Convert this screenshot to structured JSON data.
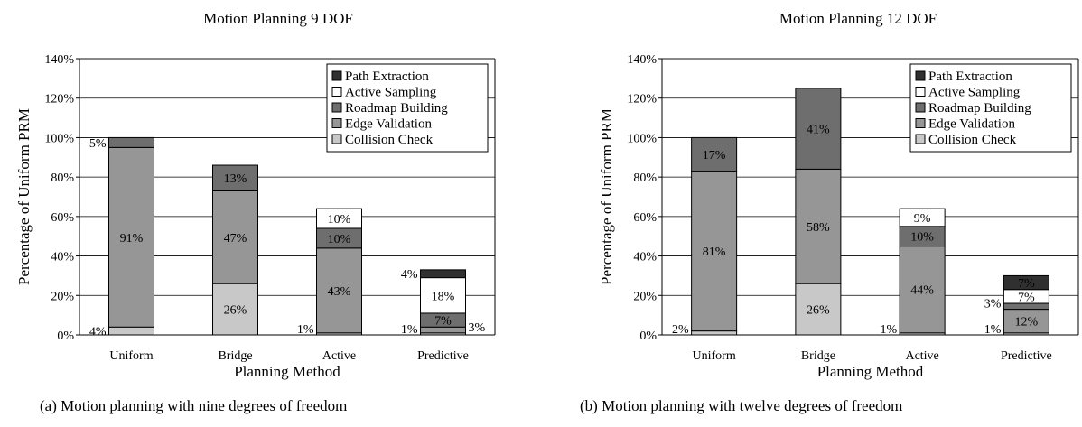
{
  "chart_data": [
    {
      "type": "stacked-bar",
      "title": "Motion Planning 9 DOF",
      "xlabel": "Planning Method",
      "ylabel": "Percentage of Uniform PRM",
      "ylim": [
        0,
        140
      ],
      "yticks": [
        "0%",
        "20%",
        "40%",
        "60%",
        "80%",
        "100%",
        "120%",
        "140%"
      ],
      "grid": true,
      "legend_position": "top-right",
      "colors": {
        "collision": "#c8c8c8",
        "edge": "#969696",
        "roadmap": "#6e6e6e",
        "active": "#ffffff",
        "path": "#303030"
      },
      "legend": [
        {
          "key": "path",
          "label": "Path Extraction"
        },
        {
          "key": "active",
          "label": "Active Sampling"
        },
        {
          "key": "roadmap",
          "label": "Roadmap Building"
        },
        {
          "key": "edge",
          "label": "Edge Validation"
        },
        {
          "key": "collision",
          "label": "Collision Check"
        }
      ],
      "categories": [
        "Uniform",
        "Bridge",
        "Active",
        "Predictive"
      ],
      "series": [
        {
          "name": "Collision Check",
          "key": "collision",
          "values": [
            4,
            26,
            1,
            1
          ]
        },
        {
          "name": "Edge Validation",
          "key": "edge",
          "values": [
            91,
            47,
            43,
            3
          ]
        },
        {
          "name": "Roadmap Building",
          "key": "roadmap",
          "values": [
            5,
            13,
            10,
            7
          ]
        },
        {
          "name": "Active Sampling",
          "key": "active",
          "values": [
            0,
            0,
            10,
            18
          ]
        },
        {
          "name": "Path Extraction",
          "key": "path",
          "values": [
            0,
            0,
            0,
            4
          ]
        }
      ],
      "data_labels": [
        {
          "category": 0,
          "series": "collision",
          "text": "4%",
          "pos": "left"
        },
        {
          "category": 0,
          "series": "edge",
          "text": "91%",
          "pos": "center"
        },
        {
          "category": 0,
          "series": "roadmap",
          "text": "5%",
          "pos": "left"
        },
        {
          "category": 1,
          "series": "collision",
          "text": "26%",
          "pos": "center"
        },
        {
          "category": 1,
          "series": "edge",
          "text": "47%",
          "pos": "center"
        },
        {
          "category": 1,
          "series": "roadmap",
          "text": "13%",
          "pos": "center"
        },
        {
          "category": 2,
          "series": "collision",
          "text": "1%",
          "pos": "left"
        },
        {
          "category": 2,
          "series": "edge",
          "text": "43%",
          "pos": "center"
        },
        {
          "category": 2,
          "series": "roadmap",
          "text": "10%",
          "pos": "center"
        },
        {
          "category": 2,
          "series": "active",
          "text": "10%",
          "pos": "center"
        },
        {
          "category": 3,
          "series": "collision",
          "text": "1%",
          "pos": "left"
        },
        {
          "category": 3,
          "series": "edge",
          "text": "3%",
          "pos": "right"
        },
        {
          "category": 3,
          "series": "roadmap",
          "text": "7%",
          "pos": "center"
        },
        {
          "category": 3,
          "series": "active",
          "text": "18%",
          "pos": "center"
        },
        {
          "category": 3,
          "series": "path",
          "text": "4%",
          "pos": "left"
        }
      ]
    },
    {
      "type": "stacked-bar",
      "title": "Motion Planning 12 DOF",
      "xlabel": "Planning Method",
      "ylabel": "Percentage of Uniform PRM",
      "ylim": [
        0,
        140
      ],
      "yticks": [
        "0%",
        "20%",
        "40%",
        "60%",
        "80%",
        "100%",
        "120%",
        "140%"
      ],
      "grid": true,
      "legend_position": "top-right",
      "colors": {
        "collision": "#c8c8c8",
        "edge": "#969696",
        "roadmap": "#6e6e6e",
        "active": "#ffffff",
        "path": "#303030"
      },
      "legend": [
        {
          "key": "path",
          "label": "Path Extraction"
        },
        {
          "key": "active",
          "label": "Active Sampling"
        },
        {
          "key": "roadmap",
          "label": "Roadmap Building"
        },
        {
          "key": "edge",
          "label": "Edge Validation"
        },
        {
          "key": "collision",
          "label": "Collision Check"
        }
      ],
      "categories": [
        "Uniform",
        "Bridge",
        "Active",
        "Predictive"
      ],
      "series": [
        {
          "name": "Collision Check",
          "key": "collision",
          "values": [
            2,
            26,
            1,
            1
          ]
        },
        {
          "name": "Edge Validation",
          "key": "edge",
          "values": [
            81,
            58,
            44,
            12
          ]
        },
        {
          "name": "Roadmap Building",
          "key": "roadmap",
          "values": [
            17,
            41,
            10,
            3
          ]
        },
        {
          "name": "Active Sampling",
          "key": "active",
          "values": [
            0,
            0,
            9,
            7
          ]
        },
        {
          "name": "Path Extraction",
          "key": "path",
          "values": [
            0,
            0,
            0,
            7
          ]
        }
      ],
      "data_labels": [
        {
          "category": 0,
          "series": "collision",
          "text": "2%",
          "pos": "left"
        },
        {
          "category": 0,
          "series": "edge",
          "text": "81%",
          "pos": "center"
        },
        {
          "category": 0,
          "series": "roadmap",
          "text": "17%",
          "pos": "center"
        },
        {
          "category": 1,
          "series": "collision",
          "text": "26%",
          "pos": "center"
        },
        {
          "category": 1,
          "series": "edge",
          "text": "58%",
          "pos": "center"
        },
        {
          "category": 1,
          "series": "roadmap",
          "text": "41%",
          "pos": "center"
        },
        {
          "category": 2,
          "series": "collision",
          "text": "1%",
          "pos": "left"
        },
        {
          "category": 2,
          "series": "edge",
          "text": "44%",
          "pos": "center"
        },
        {
          "category": 2,
          "series": "roadmap",
          "text": "10%",
          "pos": "center"
        },
        {
          "category": 2,
          "series": "active",
          "text": "9%",
          "pos": "center"
        },
        {
          "category": 3,
          "series": "collision",
          "text": "1%",
          "pos": "left"
        },
        {
          "category": 3,
          "series": "edge",
          "text": "12%",
          "pos": "center"
        },
        {
          "category": 3,
          "series": "roadmap",
          "text": "3%",
          "pos": "left"
        },
        {
          "category": 3,
          "series": "active",
          "text": "7%",
          "pos": "center"
        },
        {
          "category": 3,
          "series": "path",
          "text": "7%",
          "pos": "center"
        }
      ]
    }
  ],
  "captions": {
    "left": "(a) Motion planning with nine degrees of freedom",
    "right": "(b) Motion planning with twelve degrees of freedom"
  }
}
